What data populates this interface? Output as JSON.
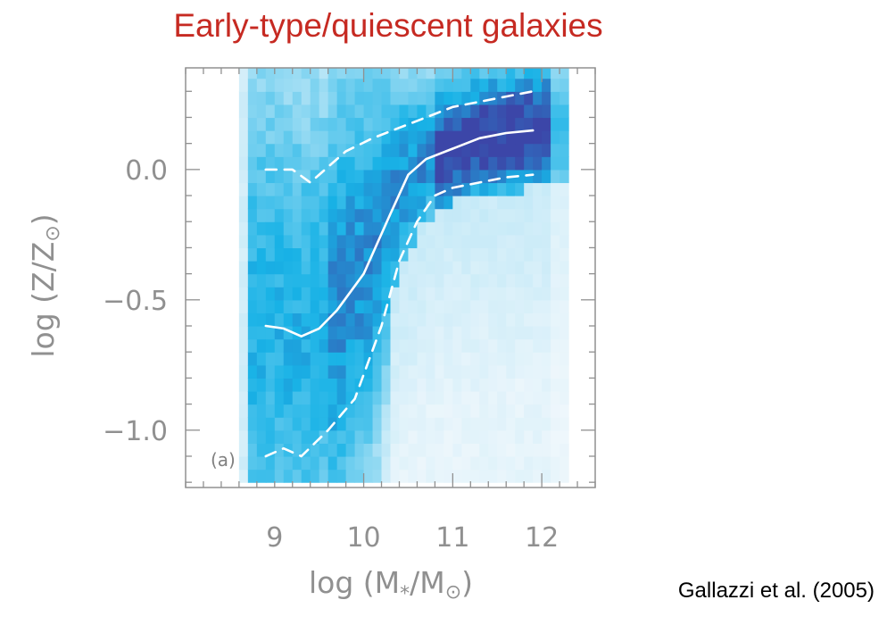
{
  "slide": {
    "title": "Early-type/quiescent galaxies",
    "citation": "Gallazzi et al. (2005)"
  },
  "chart_data": {
    "type": "heatmap",
    "panel_label": "(a)",
    "xlabel_base": "log (M",
    "xlabel_sub": "*",
    "xlabel_mid": "/M",
    "xlabel_end": ")",
    "ylabel_base": "log (Z/Z",
    "ylabel_end": ")",
    "xlim": [
      8.0,
      12.6
    ],
    "ylim": [
      -1.22,
      0.39
    ],
    "x_ticks": [
      9,
      10,
      11,
      12
    ],
    "x_tick_labels": [
      "9",
      "10",
      "11",
      "12"
    ],
    "y_ticks": [
      0.0,
      -0.5,
      -1.0
    ],
    "y_tick_labels": [
      "0.0",
      "−0.5",
      "−1.0"
    ],
    "colors": {
      "line": "#ffffff",
      "low": "#f2f8fc",
      "mid": "#18b2e6",
      "high": "#3c46a8",
      "axis": "#909090"
    },
    "median": {
      "x": [
        8.9,
        9.1,
        9.3,
        9.5,
        9.7,
        10.0,
        10.3,
        10.5,
        10.7,
        11.0,
        11.3,
        11.6,
        11.9
      ],
      "y": [
        -0.6,
        -0.61,
        -0.64,
        -0.61,
        -0.54,
        -0.4,
        -0.17,
        -0.02,
        0.04,
        0.08,
        0.12,
        0.14,
        0.15
      ]
    },
    "upper_16_84": {
      "x": [
        8.9,
        9.2,
        9.4,
        9.6,
        9.8,
        10.1,
        10.4,
        10.7,
        11.0,
        11.3,
        11.6,
        11.9
      ],
      "y": [
        0.0,
        0.0,
        -0.05,
        0.01,
        0.07,
        0.12,
        0.16,
        0.2,
        0.24,
        0.26,
        0.28,
        0.3
      ]
    },
    "lower_16_84": {
      "x": [
        8.9,
        9.1,
        9.3,
        9.6,
        9.9,
        10.2,
        10.4,
        10.6,
        10.8,
        11.0,
        11.3,
        11.6,
        11.9
      ],
      "y": [
        -1.1,
        -1.07,
        -1.1,
        -1.0,
        -0.88,
        -0.6,
        -0.35,
        -0.2,
        -0.1,
        -0.07,
        -0.05,
        -0.03,
        -0.02
      ]
    },
    "heatmap": {
      "x_edges_start": 8.6,
      "x_bin": 0.1,
      "nx": 37,
      "y_edges_start": -1.2,
      "y_bin": 0.05,
      "ny": 32,
      "note_density": "0-1 relative density per bin"
    }
  }
}
